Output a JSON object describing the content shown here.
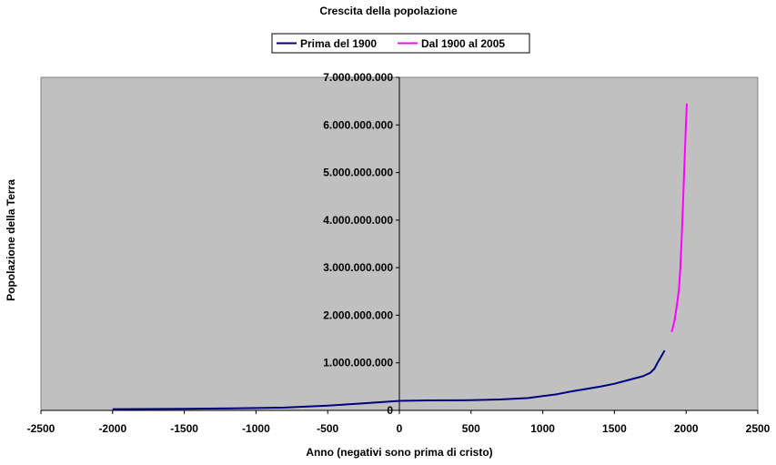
{
  "chart_data": {
    "type": "line",
    "title": "Crescita della popolazione",
    "xlabel": "Anno (negativi sono prima di cristo)",
    "ylabel": "Popolazione della Terra",
    "xlim": [
      -2500,
      2500
    ],
    "ylim": [
      0,
      7000000000
    ],
    "x_ticks": [
      "-2500",
      "-2000",
      "-1500",
      "-1000",
      "-500",
      "0",
      "500",
      "1000",
      "1500",
      "2000",
      "2500"
    ],
    "y_ticks": [
      "0",
      "1.000.000.000",
      "2.000.000.000",
      "3.000.000.000",
      "4.000.000.000",
      "5.000.000.000",
      "6.000.000.000",
      "7.000.000.000"
    ],
    "grid": false,
    "legend_position": "top",
    "plot_background": "#c0c0c0",
    "series": [
      {
        "name": "Prima del 1900",
        "color": "#000080",
        "points": [
          [
            -2000,
            27000000
          ],
          [
            -1500,
            32000000
          ],
          [
            -1000,
            50000000
          ],
          [
            -800,
            60000000
          ],
          [
            -500,
            100000000
          ],
          [
            -300,
            140000000
          ],
          [
            -100,
            180000000
          ],
          [
            0,
            200000000
          ],
          [
            200,
            210000000
          ],
          [
            500,
            215000000
          ],
          [
            700,
            230000000
          ],
          [
            900,
            260000000
          ],
          [
            1000,
            300000000
          ],
          [
            1100,
            340000000
          ],
          [
            1200,
            400000000
          ],
          [
            1300,
            450000000
          ],
          [
            1400,
            500000000
          ],
          [
            1500,
            560000000
          ],
          [
            1600,
            640000000
          ],
          [
            1700,
            720000000
          ],
          [
            1750,
            790000000
          ],
          [
            1780,
            880000000
          ],
          [
            1800,
            1000000000
          ],
          [
            1820,
            1100000000
          ],
          [
            1850,
            1260000000
          ]
        ]
      },
      {
        "name": "Dal 1900 al 2005",
        "color": "#ff00ff",
        "points": [
          [
            1900,
            1650000000
          ],
          [
            1920,
            1900000000
          ],
          [
            1940,
            2300000000
          ],
          [
            1950,
            2550000000
          ],
          [
            1960,
            3000000000
          ],
          [
            1970,
            3700000000
          ],
          [
            1980,
            4450000000
          ],
          [
            1990,
            5300000000
          ],
          [
            2000,
            6100000000
          ],
          [
            2005,
            6450000000
          ]
        ]
      }
    ]
  }
}
